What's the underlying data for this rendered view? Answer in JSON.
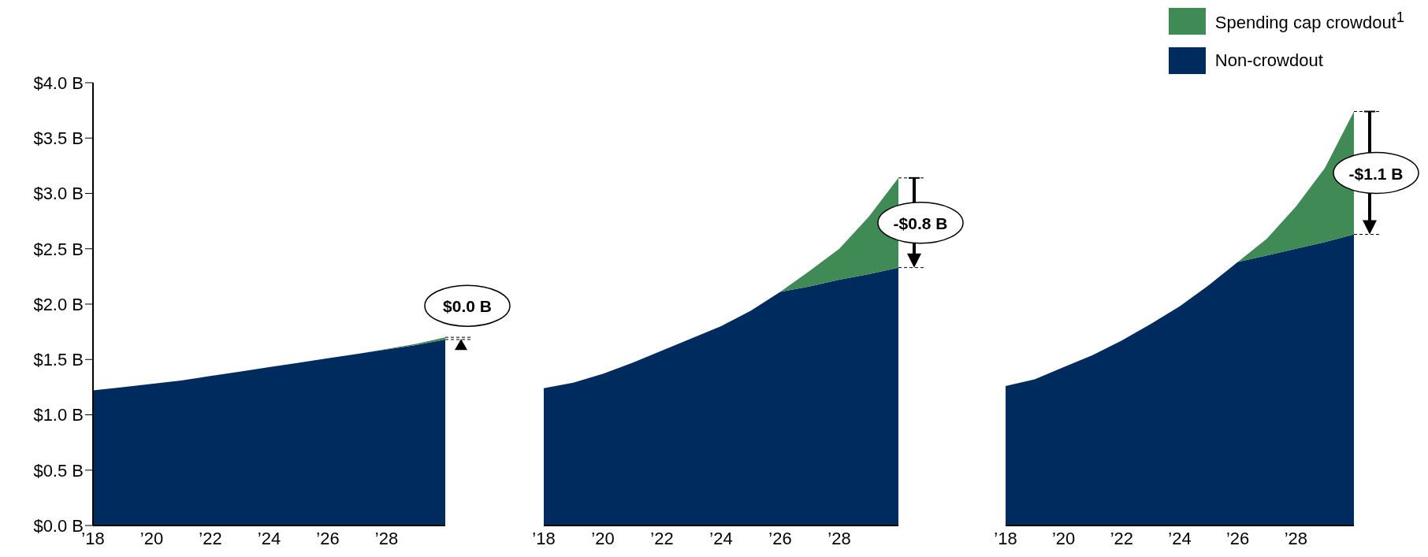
{
  "chart_data": [
    {
      "type": "area",
      "stacked": true,
      "x": [
        2018,
        2019,
        2020,
        2021,
        2022,
        2023,
        2024,
        2025,
        2026,
        2027,
        2028,
        2029,
        2030
      ],
      "xlim": [
        2018,
        2030
      ],
      "xticks": [
        {
          "value": 2018,
          "label": "’18"
        },
        {
          "value": 2020,
          "label": "’20"
        },
        {
          "value": 2022,
          "label": "’22"
        },
        {
          "value": 2024,
          "label": "’24"
        },
        {
          "value": 2026,
          "label": "’26"
        },
        {
          "value": 2028,
          "label": "’28"
        }
      ],
      "ylim": [
        0,
        4
      ],
      "yticks": [
        {
          "value": 0,
          "label": "$0.0 B"
        },
        {
          "value": 0.5,
          "label": "$0.5 B"
        },
        {
          "value": 1,
          "label": "$1.0 B"
        },
        {
          "value": 1.5,
          "label": "$1.5 B"
        },
        {
          "value": 2,
          "label": "$2.0 B"
        },
        {
          "value": 2.5,
          "label": "$2.5 B"
        },
        {
          "value": 3,
          "label": "$3.0 B"
        },
        {
          "value": 3.5,
          "label": "$3.5 B"
        },
        {
          "value": 4,
          "label": "$4.0 B"
        }
      ],
      "grid": false,
      "legend": false,
      "series": [
        {
          "color": "#002b5f",
          "values": [
            1.22,
            1.25,
            1.28,
            1.31,
            1.35,
            1.39,
            1.43,
            1.47,
            1.51,
            1.55,
            1.59,
            1.63,
            1.68
          ]
        },
        {
          "color": "#3f8a55",
          "values": [
            0,
            0,
            0,
            0,
            0,
            0,
            0,
            0,
            0,
            0,
            0.005,
            0.01,
            0.02
          ]
        }
      ],
      "annotations": [
        "$0.0 B"
      ]
    },
    {
      "type": "area",
      "stacked": true,
      "x": [
        2018,
        2019,
        2020,
        2021,
        2022,
        2023,
        2024,
        2025,
        2026,
        2027,
        2028,
        2029,
        2030
      ],
      "xlim": [
        2018,
        2030
      ],
      "xticks": [
        {
          "value": 2018,
          "label": "’18"
        },
        {
          "value": 2020,
          "label": "’20"
        },
        {
          "value": 2022,
          "label": "’22"
        },
        {
          "value": 2024,
          "label": "’24"
        },
        {
          "value": 2026,
          "label": "’26"
        },
        {
          "value": 2028,
          "label": "’28"
        }
      ],
      "ylim": [
        0,
        4
      ],
      "tick_labels": "x",
      "grid": false,
      "legend": false,
      "series": [
        {
          "color": "#002b5f",
          "values": [
            1.24,
            1.29,
            1.37,
            1.47,
            1.58,
            1.69,
            1.8,
            1.94,
            2.11,
            2.16,
            2.22,
            2.27,
            2.33
          ]
        },
        {
          "color": "#3f8a55",
          "values": [
            0,
            0,
            0,
            0,
            0,
            0,
            0,
            0,
            0,
            0.14,
            0.28,
            0.52,
            0.81
          ]
        }
      ],
      "annotations": [
        "-$0.8 B"
      ]
    },
    {
      "type": "area",
      "stacked": true,
      "x": [
        2018,
        2019,
        2020,
        2021,
        2022,
        2023,
        2024,
        2025,
        2026,
        2027,
        2028,
        2029,
        2030
      ],
      "xlim": [
        2018,
        2030
      ],
      "xticks": [
        {
          "value": 2018,
          "label": "’18"
        },
        {
          "value": 2020,
          "label": "’20"
        },
        {
          "value": 2022,
          "label": "’22"
        },
        {
          "value": 2024,
          "label": "’24"
        },
        {
          "value": 2026,
          "label": "’26"
        },
        {
          "value": 2028,
          "label": "’28"
        }
      ],
      "ylim": [
        0,
        4
      ],
      "tick_labels": "x",
      "grid": false,
      "legend": "top right",
      "series": [
        {
          "name": "Non-crowdout",
          "color": "#002b5f",
          "values": [
            1.26,
            1.32,
            1.43,
            1.54,
            1.67,
            1.82,
            1.98,
            2.17,
            2.38,
            2.44,
            2.5,
            2.56,
            2.63
          ]
        },
        {
          "name": "Spending cap crowdout$^{1}$",
          "color": "#3f8a55",
          "values": [
            0,
            0,
            0,
            0,
            0,
            0,
            0,
            0,
            0,
            0.15,
            0.38,
            0.67,
            1.11
          ]
        }
      ],
      "annotations": [
        "-$1.1 B"
      ]
    }
  ]
}
